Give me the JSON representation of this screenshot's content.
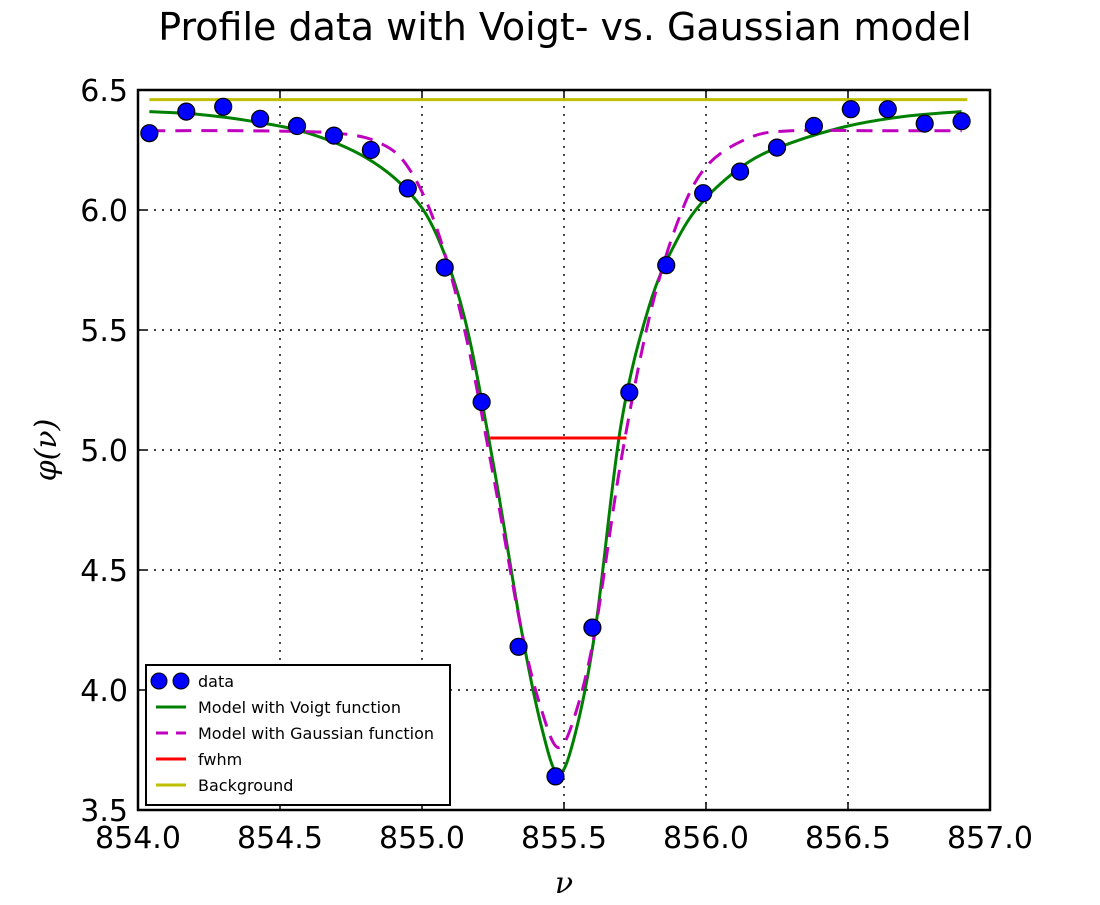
{
  "chart_data": {
    "type": "scatter",
    "title": "Profile data with Voigt- vs. Gaussian model",
    "xlabel": "ν",
    "ylabel": "φ(ν)",
    "xlim": [
      854.0,
      857.0
    ],
    "ylim": [
      3.5,
      6.5
    ],
    "xticks": [
      854.0,
      854.5,
      855.0,
      855.5,
      856.0,
      856.5,
      857.0
    ],
    "xtick_labels": [
      "854.0",
      "854.5",
      "855.0",
      "855.5",
      "856.0",
      "856.5",
      "857.0"
    ],
    "yticks": [
      3.5,
      4.0,
      4.5,
      5.0,
      5.5,
      6.0,
      6.5
    ],
    "ytick_labels": [
      "3.5",
      "4.0",
      "4.5",
      "5.0",
      "5.5",
      "6.0",
      "6.5"
    ],
    "grid": true,
    "legend_position": "lower-left",
    "series": [
      {
        "name": "data",
        "kind": "markers",
        "color": "#0000ff",
        "x": [
          854.04,
          854.17,
          854.3,
          854.43,
          854.56,
          854.69,
          854.82,
          854.95,
          855.08,
          855.21,
          855.34,
          855.47,
          855.6,
          855.73,
          855.86,
          855.99,
          856.12,
          856.25,
          856.38,
          856.51,
          856.64,
          856.77,
          856.9
        ],
        "y": [
          6.32,
          6.41,
          6.43,
          6.38,
          6.35,
          6.31,
          6.25,
          6.09,
          5.76,
          5.2,
          4.18,
          3.64,
          4.26,
          5.24,
          5.77,
          6.07,
          6.16,
          6.26,
          6.35,
          6.42,
          6.42,
          6.36,
          6.37
        ]
      },
      {
        "name": "Model with Voigt function",
        "kind": "line",
        "color": "#008000",
        "x": [
          854.04,
          854.2,
          854.4,
          854.6,
          854.8,
          854.95,
          855.05,
          855.15,
          855.25,
          855.35,
          855.42,
          855.48,
          855.54,
          855.61,
          855.7,
          855.8,
          855.9,
          856.0,
          856.15,
          856.3,
          856.5,
          856.7,
          856.9
        ],
        "y": [
          6.41,
          6.4,
          6.37,
          6.32,
          6.22,
          6.08,
          5.9,
          5.55,
          4.95,
          4.25,
          3.85,
          3.65,
          3.82,
          4.25,
          5.1,
          5.6,
          5.88,
          6.05,
          6.2,
          6.28,
          6.35,
          6.39,
          6.41
        ]
      },
      {
        "name": "Model with Gaussian function",
        "kind": "dashed-line",
        "color": "#bf00bf",
        "x": [
          854.04,
          854.4,
          854.7,
          854.85,
          854.95,
          855.05,
          855.15,
          855.25,
          855.35,
          855.42,
          855.48,
          855.54,
          855.61,
          855.7,
          855.8,
          855.9,
          856.0,
          856.15,
          856.3,
          856.6,
          856.9
        ],
        "y": [
          6.33,
          6.33,
          6.32,
          6.28,
          6.18,
          5.93,
          5.5,
          4.9,
          4.25,
          3.92,
          3.76,
          3.9,
          4.25,
          4.95,
          5.55,
          5.95,
          6.18,
          6.3,
          6.33,
          6.33,
          6.33
        ]
      },
      {
        "name": "fwhm",
        "kind": "line",
        "color": "#ff0000",
        "x": [
          855.24,
          855.72
        ],
        "y": [
          5.05,
          5.05
        ]
      },
      {
        "name": "Background",
        "kind": "line",
        "color": "#bfbf00",
        "x": [
          854.04,
          856.92
        ],
        "y": [
          6.46,
          6.46
        ]
      }
    ]
  }
}
